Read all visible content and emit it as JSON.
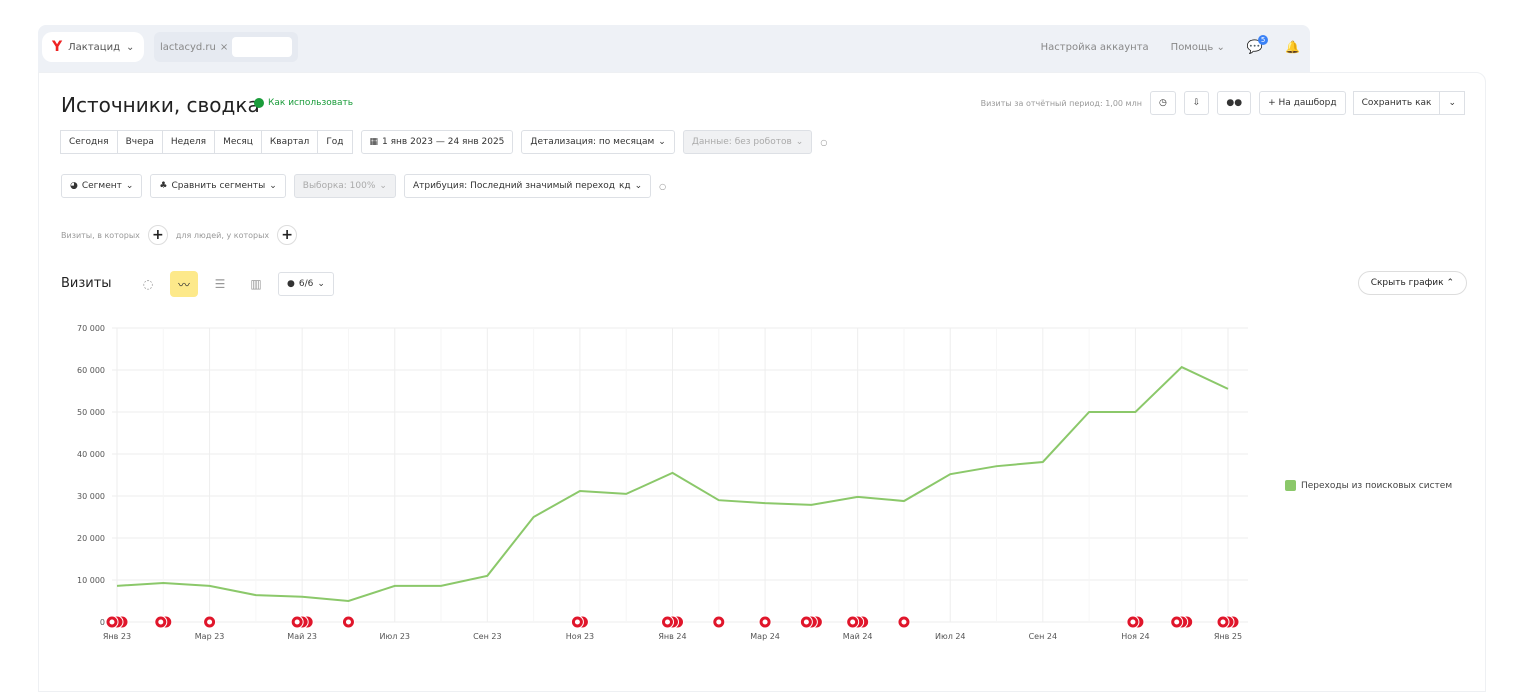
{
  "topbar": {
    "counter": "Лактацид",
    "site": "lactacyd.ru",
    "account": "Настройка аккаунта",
    "help": "Помощь",
    "messages_badge": "5"
  },
  "header": {
    "title": "Источники, сводка",
    "howto": "Как использовать",
    "visits_total": "Визиты за отчётный период: 1,00 млн",
    "dashboard": "+ На дашборд",
    "save_as": "Сохранить как"
  },
  "periods": [
    "Сегодня",
    "Вчера",
    "Неделя",
    "Месяц",
    "Квартал",
    "Год"
  ],
  "filters": {
    "date_range": "1 янв 2023 — 24 янв 2025",
    "detail": "Детализация: по месяцам",
    "data": "Данные: без роботов",
    "segment": "Сегмент",
    "compare": "Сравнить сегменты",
    "sample": "Выборка: 100%",
    "attribution": "Атрибуция: Последний значимый переход",
    "attribution_tag": "кд",
    "visits_where": "Визиты, в которых",
    "people_where": "для людей, у которых"
  },
  "chart_panel": {
    "label": "Визиты",
    "series_count": "6/6",
    "hide": "Скрыть график"
  },
  "chart_data": {
    "type": "line",
    "x": [
      "Янв 23",
      "Фев 23",
      "Мар 23",
      "Апр 23",
      "Май 23",
      "Июн 23",
      "Июл 23",
      "Авг 23",
      "Сен 23",
      "Окт 23",
      "Ноя 23",
      "Дек 23",
      "Янв 24",
      "Фев 24",
      "Мар 24",
      "Апр 24",
      "Май 24",
      "Июн 24",
      "Июл 24",
      "Авг 24",
      "Сен 24",
      "Окт 24",
      "Ноя 24",
      "Дек 24",
      "Янв 25"
    ],
    "x_tick_labels": [
      "Янв 23",
      "Мар 23",
      "Май 23",
      "Июл 23",
      "Сен 23",
      "Ноя 23",
      "Янв 24",
      "Мар 24",
      "Май 24",
      "Июл 24",
      "Сен 24",
      "Ноя 24",
      "Янв 25"
    ],
    "series": [
      {
        "name": "Переходы из поисковых систем",
        "color": "#8bc86a",
        "values": [
          8600,
          9300,
          8600,
          6400,
          6000,
          5000,
          8600,
          8600,
          11000,
          25000,
          31200,
          30500,
          35500,
          29000,
          28300,
          27900,
          29800,
          28800,
          35200,
          37100,
          38100,
          50000,
          50000,
          60700,
          55500
        ]
      }
    ],
    "y_ticks": [
      "0",
      "10 000",
      "20 000",
      "30 000",
      "40 000",
      "50 000",
      "60 000",
      "70 000"
    ],
    "ylim": [
      0,
      70000
    ],
    "grid": true,
    "legend": "right",
    "annotations": [
      {
        "i": 0,
        "n": 3
      },
      {
        "i": 1,
        "n": 2
      },
      {
        "i": 2,
        "n": 1
      },
      {
        "i": 4,
        "n": 3
      },
      {
        "i": 5,
        "n": 1
      },
      {
        "i": 10,
        "n": 2
      },
      {
        "i": 12,
        "n": 3
      },
      {
        "i": 13,
        "n": 1
      },
      {
        "i": 14,
        "n": 1
      },
      {
        "i": 15,
        "n": 3
      },
      {
        "i": 16,
        "n": 3
      },
      {
        "i": 17,
        "n": 1
      },
      {
        "i": 22,
        "n": 2
      },
      {
        "i": 23,
        "n": 3
      },
      {
        "i": 24,
        "n": 3
      }
    ],
    "annotation_color": "#e0162b"
  }
}
